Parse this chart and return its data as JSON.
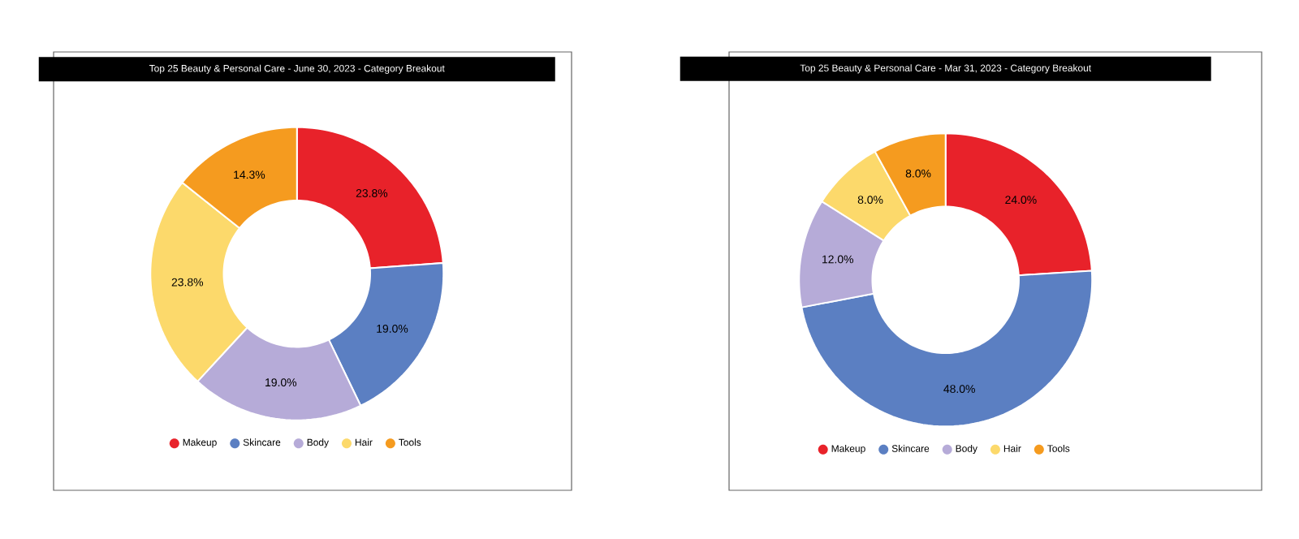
{
  "chart_data": [
    {
      "type": "donut",
      "title": "Top 25 Beauty & Personal Care - June 30, 2023 - Category Breakout",
      "categories": [
        "Makeup",
        "Skincare",
        "Body",
        "Hair",
        "Tools"
      ],
      "values": [
        23.8,
        19.0,
        19.0,
        23.8,
        14.3
      ],
      "value_labels": [
        "23.8%",
        "19.0%",
        "19.0%",
        "23.8%",
        "14.3%"
      ],
      "colors": [
        "#e8222a",
        "#5b7fc2",
        "#b6abd8",
        "#fcd96b",
        "#f59b1f"
      ],
      "legend": "bottom"
    },
    {
      "type": "donut",
      "title": "Top 25 Beauty & Personal Care - Mar 31, 2023 - Category Breakout",
      "categories": [
        "Makeup",
        "Skincare",
        "Body",
        "Hair",
        "Tools"
      ],
      "values": [
        24.0,
        48.0,
        12.0,
        8.0,
        8.0
      ],
      "value_labels": [
        "24.0%",
        "48.0%",
        "12.0%",
        "8.0%",
        "8.0%"
      ],
      "colors": [
        "#e8222a",
        "#5b7fc2",
        "#b6abd8",
        "#fcd96b",
        "#f59b1f"
      ],
      "legend": "bottom"
    }
  ]
}
